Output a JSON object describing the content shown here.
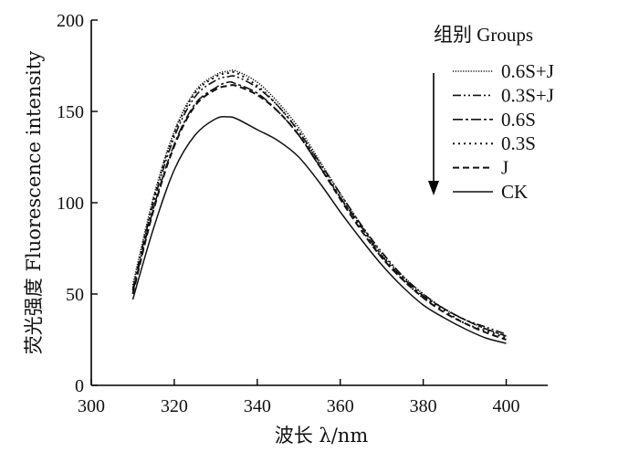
{
  "chart_data": {
    "type": "line",
    "xlabel": "波长 λ/nm",
    "ylabel": "荧光强度 Fluorescence intensity",
    "xlim": [
      300,
      410
    ],
    "ylim": [
      0,
      200
    ],
    "xticks": [
      300,
      320,
      340,
      360,
      380,
      400
    ],
    "yticks": [
      0,
      50,
      100,
      150,
      200
    ],
    "grid": false,
    "legend": {
      "title": "组别 Groups",
      "placement": "top-right",
      "arrow": "down"
    },
    "x": [
      310,
      315,
      320,
      325,
      330,
      333,
      335,
      340,
      345,
      350,
      355,
      360,
      365,
      370,
      375,
      380,
      385,
      390,
      395,
      400
    ],
    "series": [
      {
        "name": "0.6S+J",
        "style": "dotted-dense",
        "values": [
          55,
          103,
          139,
          161,
          170,
          172,
          172,
          166,
          155,
          141,
          123,
          105,
          88,
          72,
          60,
          50,
          42,
          36,
          31,
          27
        ]
      },
      {
        "name": "0.3S+J",
        "style": "dash-dot-dot",
        "values": [
          53,
          100,
          136,
          158,
          167,
          169,
          169,
          163,
          153,
          139,
          122,
          105,
          88,
          73,
          60,
          50,
          42,
          36,
          32,
          28
        ]
      },
      {
        "name": "0.6S",
        "style": "dash-dot",
        "values": [
          51,
          97,
          132,
          154,
          163,
          166,
          165,
          160,
          150,
          137,
          120,
          103,
          87,
          71,
          59,
          49,
          42,
          36,
          31,
          27
        ]
      },
      {
        "name": "0.3S",
        "style": "dotted",
        "values": [
          52,
          102,
          138,
          160,
          169,
          171,
          171,
          164,
          153,
          139,
          121,
          103,
          86,
          70,
          58,
          48,
          41,
          34,
          30,
          26
        ]
      },
      {
        "name": "J",
        "style": "dashed",
        "values": [
          50,
          96,
          131,
          153,
          162,
          164,
          164,
          159,
          150,
          137,
          120,
          102,
          85,
          70,
          58,
          48,
          40,
          34,
          29,
          25
        ]
      },
      {
        "name": "CK",
        "style": "solid",
        "values": [
          47,
          86,
          118,
          137,
          146,
          147,
          146,
          140,
          134,
          125,
          111,
          95,
          80,
          66,
          54,
          44,
          37,
          31,
          26,
          23
        ]
      }
    ]
  }
}
